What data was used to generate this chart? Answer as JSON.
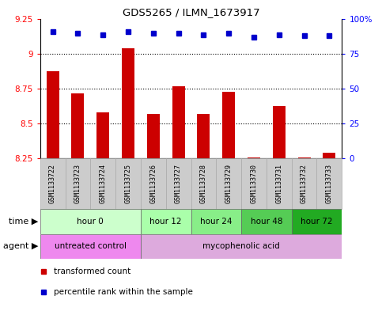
{
  "title": "GDS5265 / ILMN_1673917",
  "samples": [
    "GSM1133722",
    "GSM1133723",
    "GSM1133724",
    "GSM1133725",
    "GSM1133726",
    "GSM1133727",
    "GSM1133728",
    "GSM1133729",
    "GSM1133730",
    "GSM1133731",
    "GSM1133732",
    "GSM1133733"
  ],
  "bar_values": [
    8.88,
    8.72,
    8.58,
    9.04,
    8.57,
    8.77,
    8.57,
    8.73,
    8.26,
    8.63,
    8.26,
    8.29
  ],
  "percentile_values": [
    91,
    90,
    89,
    91,
    90,
    90,
    89,
    90,
    87,
    89,
    88,
    88
  ],
  "bar_bottom": 8.25,
  "ylim": [
    8.25,
    9.25
  ],
  "ylim_right": [
    0,
    100
  ],
  "yticks_left": [
    8.25,
    8.5,
    8.75,
    9.0,
    9.25
  ],
  "yticks_right": [
    0,
    25,
    50,
    75,
    100
  ],
  "ytick_labels_left": [
    "8.25",
    "8.5",
    "8.75",
    "9",
    "9.25"
  ],
  "ytick_labels_right": [
    "0",
    "25",
    "50",
    "75",
    "100%"
  ],
  "grid_lines": [
    8.5,
    8.75,
    9.0
  ],
  "bar_color": "#cc0000",
  "dot_color": "#0000cc",
  "dot_size": 5,
  "bar_width": 0.5,
  "time_groups": [
    {
      "label": "hour 0",
      "start": 0,
      "end": 4,
      "color": "#ccffcc"
    },
    {
      "label": "hour 12",
      "start": 4,
      "end": 6,
      "color": "#aaffaa"
    },
    {
      "label": "hour 24",
      "start": 6,
      "end": 8,
      "color": "#88ee88"
    },
    {
      "label": "hour 48",
      "start": 8,
      "end": 10,
      "color": "#55cc55"
    },
    {
      "label": "hour 72",
      "start": 10,
      "end": 12,
      "color": "#22aa22"
    }
  ],
  "agent_groups": [
    {
      "label": "untreated control",
      "start": 0,
      "end": 4,
      "color": "#ee88ee"
    },
    {
      "label": "mycophenolic acid",
      "start": 4,
      "end": 12,
      "color": "#ddaadd"
    }
  ],
  "legend_items": [
    {
      "label": "transformed count",
      "color": "#cc0000"
    },
    {
      "label": "percentile rank within the sample",
      "color": "#0000cc"
    }
  ],
  "time_label": "time",
  "agent_label": "agent",
  "sample_box_color": "#cccccc",
  "sample_box_edge": "#aaaaaa",
  "fig_width": 4.83,
  "fig_height": 3.93,
  "dpi": 100
}
